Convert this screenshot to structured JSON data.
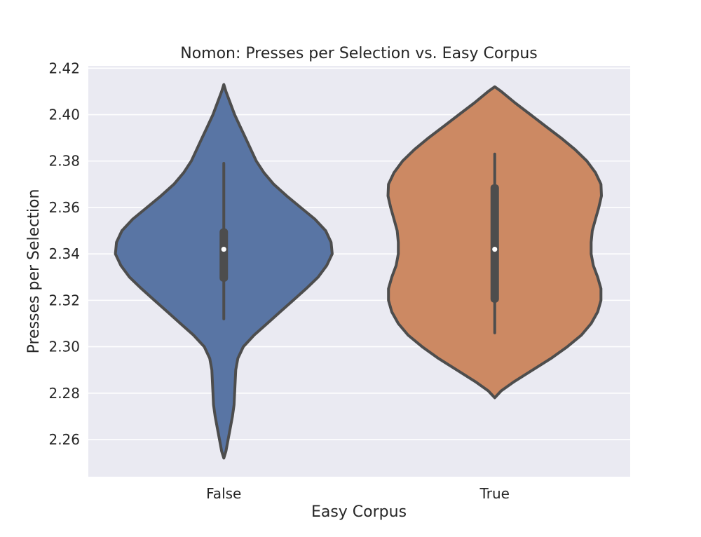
{
  "chart_data": {
    "type": "violin",
    "title": "Nomon: Presses per Selection vs. Easy Corpus",
    "xlabel": "Easy Corpus",
    "ylabel": "Presses per Selection",
    "categories": [
      "False",
      "True"
    ],
    "ylim": [
      2.244,
      2.421
    ],
    "yticks": [
      "2.26",
      "2.28",
      "2.30",
      "2.32",
      "2.34",
      "2.36",
      "2.38",
      "2.40",
      "2.42"
    ],
    "grid": true,
    "colors": {
      "background": "#eaeaf2",
      "grid": "#ffffff",
      "outline": "#4d4d4d",
      "False": "#5975a4",
      "True": "#cc8963"
    },
    "series": [
      {
        "category": "False",
        "min": 2.252,
        "max": 2.413,
        "whisker_low": 2.312,
        "q1": 2.328,
        "median": 2.342,
        "q3": 2.351,
        "whisker_high": 2.379,
        "density_profile": [
          [
            2.252,
            0.0
          ],
          [
            2.255,
            0.02
          ],
          [
            2.26,
            0.04
          ],
          [
            2.265,
            0.06
          ],
          [
            2.27,
            0.08
          ],
          [
            2.275,
            0.095
          ],
          [
            2.28,
            0.1
          ],
          [
            2.285,
            0.105
          ],
          [
            2.29,
            0.11
          ],
          [
            2.295,
            0.13
          ],
          [
            2.3,
            0.18
          ],
          [
            2.305,
            0.28
          ],
          [
            2.31,
            0.4
          ],
          [
            2.315,
            0.52
          ],
          [
            2.32,
            0.64
          ],
          [
            2.325,
            0.76
          ],
          [
            2.33,
            0.87
          ],
          [
            2.335,
            0.95
          ],
          [
            2.34,
            1.0
          ],
          [
            2.345,
            0.99
          ],
          [
            2.35,
            0.94
          ],
          [
            2.355,
            0.84
          ],
          [
            2.36,
            0.71
          ],
          [
            2.365,
            0.58
          ],
          [
            2.37,
            0.46
          ],
          [
            2.375,
            0.37
          ],
          [
            2.38,
            0.3
          ],
          [
            2.385,
            0.25
          ],
          [
            2.39,
            0.2
          ],
          [
            2.395,
            0.15
          ],
          [
            2.4,
            0.1
          ],
          [
            2.405,
            0.06
          ],
          [
            2.41,
            0.02
          ],
          [
            2.413,
            0.0
          ]
        ]
      },
      {
        "category": "True",
        "min": 2.278,
        "max": 2.412,
        "whisker_low": 2.306,
        "q1": 2.319,
        "median": 2.342,
        "q3": 2.37,
        "whisker_high": 2.383,
        "density_profile": [
          [
            2.278,
            0.0
          ],
          [
            2.281,
            0.06
          ],
          [
            2.285,
            0.18
          ],
          [
            2.29,
            0.35
          ],
          [
            2.295,
            0.52
          ],
          [
            2.3,
            0.67
          ],
          [
            2.305,
            0.8
          ],
          [
            2.31,
            0.89
          ],
          [
            2.315,
            0.95
          ],
          [
            2.32,
            0.98
          ],
          [
            2.325,
            0.98
          ],
          [
            2.33,
            0.95
          ],
          [
            2.335,
            0.91
          ],
          [
            2.34,
            0.89
          ],
          [
            2.345,
            0.89
          ],
          [
            2.35,
            0.9
          ],
          [
            2.355,
            0.93
          ],
          [
            2.36,
            0.96
          ],
          [
            2.365,
            0.985
          ],
          [
            2.37,
            0.98
          ],
          [
            2.375,
            0.93
          ],
          [
            2.38,
            0.85
          ],
          [
            2.385,
            0.74
          ],
          [
            2.39,
            0.61
          ],
          [
            2.395,
            0.47
          ],
          [
            2.4,
            0.33
          ],
          [
            2.405,
            0.19
          ],
          [
            2.41,
            0.06
          ],
          [
            2.412,
            0.0
          ]
        ]
      }
    ]
  }
}
